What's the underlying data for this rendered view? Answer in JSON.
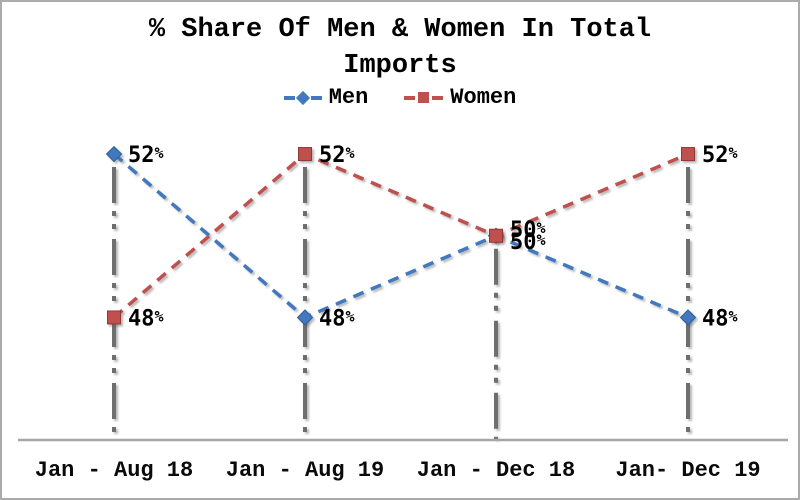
{
  "window": {
    "background_color": "#ffffff",
    "border_color": "#ababab"
  },
  "chart_data": {
    "type": "line",
    "title": "% Share Of Men & Women In Total Imports",
    "categories": [
      "Jan - Aug 18",
      "Jan - Aug 19",
      "Jan - Dec 18",
      "Jan- Dec 19"
    ],
    "series": [
      {
        "name": "Men",
        "values": [
          52,
          48,
          50,
          48
        ],
        "color": "#4178be",
        "marker_edge_color": "#2f5c94",
        "marker": "diamond",
        "line_style": "dashed"
      },
      {
        "name": "Women",
        "values": [
          48,
          52,
          50,
          52
        ],
        "color": "#c0504d",
        "marker_edge_color": "#8f3835",
        "marker": "square",
        "line_style": "dashed"
      }
    ],
    "data_labels": true,
    "value_suffix": "%",
    "xlabel": "",
    "ylabel": "",
    "ylim": [
      45,
      53
    ],
    "grid": false,
    "legend_position": "top",
    "axis_color": "#a6a6a6",
    "drop_lines": {
      "style": "long-dash-dot-dot",
      "color": "#6e6e6e"
    },
    "data_label_color": "#000000"
  }
}
